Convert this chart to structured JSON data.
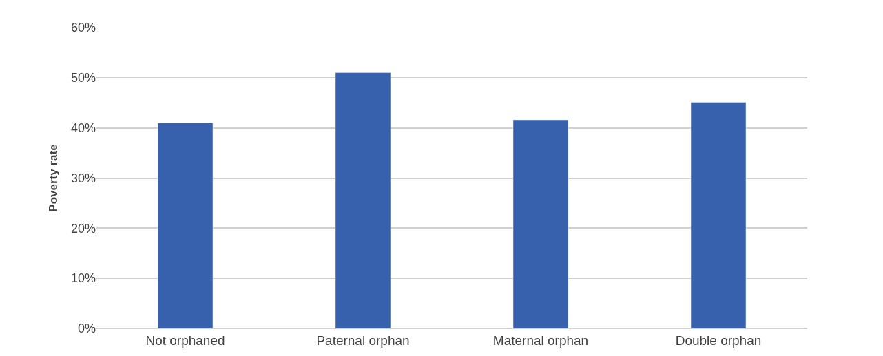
{
  "chart_data": {
    "type": "bar",
    "ylabel": "Poverty rate",
    "categories": [
      "Not orphaned",
      "Paternal orphan",
      "Maternal orphan",
      "Double orphan"
    ],
    "values": [
      41,
      51,
      41.6,
      45.1
    ],
    "color": "#3861ad",
    "ylim": [
      0,
      60
    ],
    "yticks": [
      {
        "value": 0,
        "label": "0%"
      },
      {
        "value": 10,
        "label": "10%"
      },
      {
        "value": 20,
        "label": "20%"
      },
      {
        "value": 30,
        "label": "30%"
      },
      {
        "value": 40,
        "label": "40%"
      },
      {
        "value": 50,
        "label": "50%"
      },
      {
        "value": 60,
        "label": "60%"
      }
    ],
    "grid": "y",
    "legend": false
  }
}
